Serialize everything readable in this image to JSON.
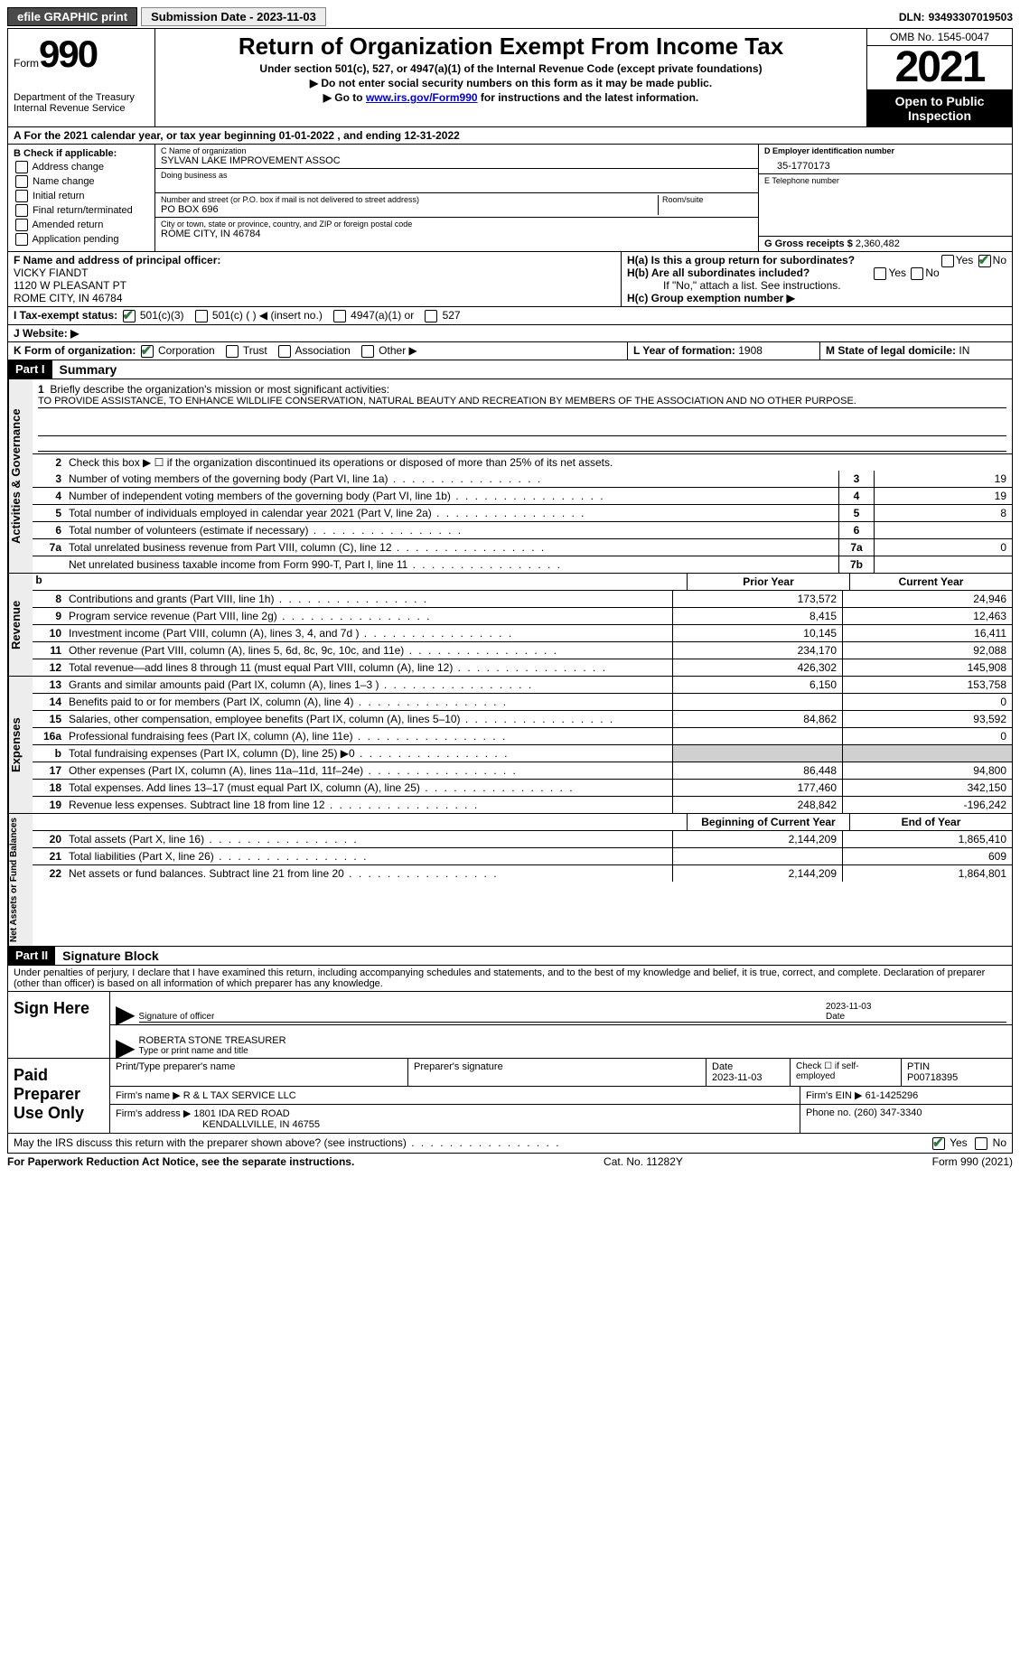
{
  "topbar": {
    "efile": "efile GRAPHIC print",
    "submission_label": "Submission Date - ",
    "submission_date": "2023-11-03",
    "dln_label": "DLN: ",
    "dln": "93493307019503"
  },
  "header": {
    "form_word": "Form",
    "form_num": "990",
    "dept": "Department of the Treasury\nInternal Revenue Service",
    "title": "Return of Organization Exempt From Income Tax",
    "subtitle": "Under section 501(c), 527, or 4947(a)(1) of the Internal Revenue Code (except private foundations)",
    "inst1": "▶ Do not enter social security numbers on this form as it may be made public.",
    "inst2_pre": "▶ Go to ",
    "inst2_link": "www.irs.gov/Form990",
    "inst2_post": " for instructions and the latest information.",
    "omb": "OMB No. 1545-0047",
    "year": "2021",
    "open": "Open to Public Inspection"
  },
  "rowA": {
    "text_pre": "A For the 2021 calendar year, or tax year beginning ",
    "begin": "01-01-2022",
    "mid": " , and ending ",
    "end": "12-31-2022"
  },
  "colB": {
    "title": "B Check if applicable:",
    "items": [
      "Address change",
      "Name change",
      "Initial return",
      "Final return/terminated",
      "Amended return",
      "Application pending"
    ]
  },
  "colC": {
    "name_label": "C Name of organization",
    "name": "SYLVAN LAKE IMPROVEMENT ASSOC",
    "dba_label": "Doing business as",
    "addr_label": "Number and street (or P.O. box if mail is not delivered to street address)",
    "room_label": "Room/suite",
    "addr": "PO BOX 696",
    "city_label": "City or town, state or province, country, and ZIP or foreign postal code",
    "city": "ROME CITY, IN  46784"
  },
  "colDE": {
    "d_label": "D Employer identification number",
    "d_val": "35-1770173",
    "e_label": "E Telephone number",
    "g_label": "G Gross receipts $ ",
    "g_val": "2,360,482"
  },
  "sectionF": {
    "label": "F Name and address of principal officer:",
    "name": "VICKY FIANDT",
    "addr1": "1120 W PLEASANT PT",
    "addr2": "ROME CITY, IN  46784"
  },
  "sectionH": {
    "a_label": "H(a)  Is this a group return for subordinates?",
    "yes": "Yes",
    "no": "No",
    "b_label": "H(b)  Are all subordinates included?",
    "b_note": "If \"No,\" attach a list. See instructions.",
    "c_label": "H(c)  Group exemption number ▶"
  },
  "sectionI": {
    "label": "I   Tax-exempt status:",
    "o501c3": "501(c)(3)",
    "o501c": "501(c) (  ) ◀ (insert no.)",
    "o4947": "4947(a)(1) or",
    "o527": "527"
  },
  "sectionJ": {
    "label": "J   Website: ▶"
  },
  "sectionK": {
    "label": "K Form of organization:",
    "corp": "Corporation",
    "trust": "Trust",
    "assoc": "Association",
    "other": "Other ▶"
  },
  "sectionL": {
    "label": "L Year of formation: ",
    "val": "1908"
  },
  "sectionM": {
    "label": "M State of legal domicile: ",
    "val": "IN"
  },
  "part1": {
    "header": "Part I",
    "title": "Summary",
    "tab_ag": "Activities & Governance",
    "tab_rev": "Revenue",
    "tab_exp": "Expenses",
    "tab_na": "Net Assets or Fund Balances",
    "line1_label": "Briefly describe the organization's mission or most significant activities:",
    "line1_text": "TO PROVIDE ASSISTANCE, TO ENHANCE WILDLIFE CONSERVATION, NATURAL BEAUTY AND RECREATION BY MEMBERS OF THE ASSOCIATION AND NO OTHER PURPOSE.",
    "line2": "Check this box ▶ ☐ if the organization discontinued its operations or disposed of more than 25% of its net assets.",
    "lines_ag": [
      {
        "n": "3",
        "d": "Number of voting members of the governing body (Part VI, line 1a)",
        "box": "3",
        "v": "19"
      },
      {
        "n": "4",
        "d": "Number of independent voting members of the governing body (Part VI, line 1b)",
        "box": "4",
        "v": "19"
      },
      {
        "n": "5",
        "d": "Total number of individuals employed in calendar year 2021 (Part V, line 2a)",
        "box": "5",
        "v": "8"
      },
      {
        "n": "6",
        "d": "Total number of volunteers (estimate if necessary)",
        "box": "6",
        "v": ""
      },
      {
        "n": "7a",
        "d": "Total unrelated business revenue from Part VIII, column (C), line 12",
        "box": "7a",
        "v": "0"
      },
      {
        "n": "",
        "d": "Net unrelated business taxable income from Form 990-T, Part I, line 11",
        "box": "7b",
        "v": ""
      }
    ],
    "col_prior": "Prior Year",
    "col_current": "Current Year",
    "col_boy": "Beginning of Current Year",
    "col_eoy": "End of Year",
    "lines_rev": [
      {
        "n": "8",
        "d": "Contributions and grants (Part VIII, line 1h)",
        "p": "173,572",
        "c": "24,946"
      },
      {
        "n": "9",
        "d": "Program service revenue (Part VIII, line 2g)",
        "p": "8,415",
        "c": "12,463"
      },
      {
        "n": "10",
        "d": "Investment income (Part VIII, column (A), lines 3, 4, and 7d )",
        "p": "10,145",
        "c": "16,411"
      },
      {
        "n": "11",
        "d": "Other revenue (Part VIII, column (A), lines 5, 6d, 8c, 9c, 10c, and 11e)",
        "p": "234,170",
        "c": "92,088"
      },
      {
        "n": "12",
        "d": "Total revenue—add lines 8 through 11 (must equal Part VIII, column (A), line 12)",
        "p": "426,302",
        "c": "145,908"
      }
    ],
    "lines_exp": [
      {
        "n": "13",
        "d": "Grants and similar amounts paid (Part IX, column (A), lines 1–3 )",
        "p": "6,150",
        "c": "153,758"
      },
      {
        "n": "14",
        "d": "Benefits paid to or for members (Part IX, column (A), line 4)",
        "p": "",
        "c": "0"
      },
      {
        "n": "15",
        "d": "Salaries, other compensation, employee benefits (Part IX, column (A), lines 5–10)",
        "p": "84,862",
        "c": "93,592"
      },
      {
        "n": "16a",
        "d": "Professional fundraising fees (Part IX, column (A), line 11e)",
        "p": "",
        "c": "0"
      },
      {
        "n": "b",
        "d": "Total fundraising expenses (Part IX, column (D), line 25) ▶0",
        "p": "shade",
        "c": "shade"
      },
      {
        "n": "17",
        "d": "Other expenses (Part IX, column (A), lines 11a–11d, 11f–24e)",
        "p": "86,448",
        "c": "94,800"
      },
      {
        "n": "18",
        "d": "Total expenses. Add lines 13–17 (must equal Part IX, column (A), line 25)",
        "p": "177,460",
        "c": "342,150"
      },
      {
        "n": "19",
        "d": "Revenue less expenses. Subtract line 18 from line 12",
        "p": "248,842",
        "c": "-196,242"
      }
    ],
    "lines_na": [
      {
        "n": "20",
        "d": "Total assets (Part X, line 16)",
        "p": "2,144,209",
        "c": "1,865,410"
      },
      {
        "n": "21",
        "d": "Total liabilities (Part X, line 26)",
        "p": "",
        "c": "609"
      },
      {
        "n": "22",
        "d": "Net assets or fund balances. Subtract line 21 from line 20",
        "p": "2,144,209",
        "c": "1,864,801"
      }
    ]
  },
  "part2": {
    "header": "Part II",
    "title": "Signature Block",
    "intro": "Under penalties of perjury, I declare that I have examined this return, including accompanying schedules and statements, and to the best of my knowledge and belief, it is true, correct, and complete. Declaration of preparer (other than officer) is based on all information of which preparer has any knowledge.",
    "sign_here": "Sign Here",
    "sig_officer": "Signature of officer",
    "sig_date": "2023-11-03",
    "date_label": "Date",
    "officer_name": "ROBERTA STONE TREASURER",
    "type_name": "Type or print name and title",
    "paid_prep": "Paid Preparer Use Only",
    "prep_name_label": "Print/Type preparer's name",
    "prep_sig_label": "Preparer's signature",
    "prep_date_label": "Date",
    "prep_date": "2023-11-03",
    "check_self": "Check ☐ if self-employed",
    "ptin_label": "PTIN",
    "ptin": "P00718395",
    "firm_name_label": "Firm's name    ▶ ",
    "firm_name": "R & L TAX SERVICE LLC",
    "firm_ein_label": "Firm's EIN ▶ ",
    "firm_ein": "61-1425296",
    "firm_addr_label": "Firm's address ▶ ",
    "firm_addr1": "1801 IDA RED ROAD",
    "firm_addr2": "KENDALLVILLE, IN  46755",
    "phone_label": "Phone no. ",
    "phone": "(260) 347-3340",
    "may_irs": "May the IRS discuss this return with the preparer shown above? (see instructions)"
  },
  "footer": {
    "left": "For Paperwork Reduction Act Notice, see the separate instructions.",
    "mid": "Cat. No. 11282Y",
    "right": "Form 990 (2021)"
  }
}
